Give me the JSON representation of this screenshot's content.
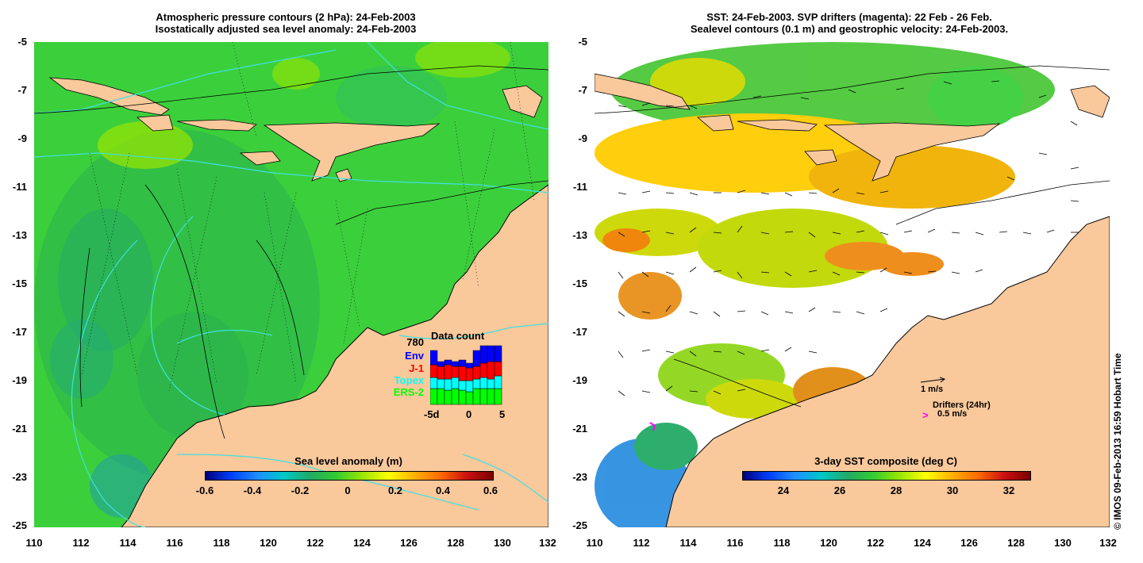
{
  "left_map": {
    "title_line1": "Atmospheric pressure contours (2 hPa): 24-Feb-2003",
    "title_line2": "Isostatically adjusted sea level anomaly: 24-Feb-2003",
    "lat_ticks": [
      "-5",
      "-7",
      "-9",
      "-11",
      "-13",
      "-15",
      "-17",
      "-19",
      "-21",
      "-23",
      "-25"
    ],
    "lon_ticks": [
      "110",
      "112",
      "114",
      "116",
      "118",
      "120",
      "122",
      "124",
      "126",
      "128",
      "130",
      "132"
    ],
    "colorbar": {
      "title": "Sea level anomaly (m)",
      "ticks": [
        "-0.6",
        "-0.4",
        "-0.2",
        "0",
        "0.2",
        "0.4",
        "0.6"
      ]
    },
    "legend": {
      "count": "780",
      "title": "Data count",
      "missions": [
        {
          "label": "Env",
          "color": "#0000ff"
        },
        {
          "label": "J-1",
          "color": "#ff0000"
        },
        {
          "label": "Topex",
          "color": "#00ffff"
        },
        {
          "label": "ERS-2",
          "color": "#00ff00"
        }
      ],
      "hist_ticks": [
        "-5d",
        "0",
        "5"
      ]
    }
  },
  "right_map": {
    "title_line1": "SST: 24-Feb-2003. SVP drifters (magenta): 22 Feb - 26 Feb.",
    "title_line2": "Sealevel contours (0.1 m) and geostrophic velocity: 24-Feb-2003.",
    "lat_ticks": [
      "-5",
      "-7",
      "-9",
      "-11",
      "-13",
      "-15",
      "-17",
      "-19",
      "-21",
      "-23",
      "-25"
    ],
    "lon_ticks": [
      "110",
      "112",
      "114",
      "116",
      "118",
      "120",
      "122",
      "124",
      "126",
      "128",
      "130",
      "132"
    ],
    "colorbar": {
      "title": "3-day SST composite (deg C)",
      "ticks": [
        "24",
        "26",
        "28",
        "30",
        "32"
      ]
    },
    "velocity_scale": "1 m/s",
    "drifter_label": "Drifters (24hr)",
    "drifter_speed": "0.5 m/s",
    "drifter_marker": ">"
  },
  "credit": "© IMOS 09-Feb-2013 16:59 Hobart Time",
  "colors": {
    "land": "#f9c89b",
    "ocean_left": "#33cc33",
    "contour_cyan": "#40e0e0",
    "drifter": "#ff00ff"
  }
}
